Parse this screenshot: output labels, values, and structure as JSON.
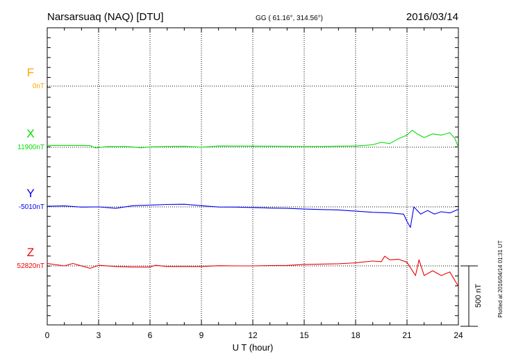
{
  "header": {
    "station": "Narsarsuaq (NAQ)  [DTU]",
    "coords": "GG ( 61.16°, 314.56°)",
    "date": "2016/03/14"
  },
  "side_note": "Plotted at 2016/04/14 01:31  UT",
  "chart_data": {
    "type": "line",
    "xlabel": "U T (hour)",
    "xlim": [
      0,
      24
    ],
    "xticks": [
      "0",
      "3",
      "6",
      "9",
      "12",
      "15",
      "18",
      "21",
      "24"
    ],
    "scale_label": "500 nT",
    "grid": true,
    "colors": {
      "F": "#ffa500",
      "X": "#00dd00",
      "Y": "#0000ee",
      "Z": "#ee0000"
    },
    "series": [
      {
        "name": "F",
        "baseline_label": "0nT",
        "points": []
      },
      {
        "name": "X",
        "baseline_label": "11900nT",
        "points": [
          [
            0,
            15
          ],
          [
            1.5,
            15
          ],
          [
            2.5,
            14
          ],
          [
            2.8,
            -5
          ],
          [
            3.2,
            0
          ],
          [
            3.6,
            5
          ],
          [
            4,
            4
          ],
          [
            4.5,
            5
          ],
          [
            5,
            2
          ],
          [
            5.5,
            -5
          ],
          [
            6,
            3
          ],
          [
            7,
            5
          ],
          [
            8,
            7
          ],
          [
            9,
            0
          ],
          [
            10,
            10
          ],
          [
            11,
            9
          ],
          [
            12,
            9
          ],
          [
            13,
            8
          ],
          [
            14,
            7
          ],
          [
            15,
            6
          ],
          [
            16,
            5
          ],
          [
            17,
            8
          ],
          [
            18,
            10
          ],
          [
            19,
            20
          ],
          [
            19.5,
            40
          ],
          [
            20,
            30
          ],
          [
            20.5,
            70
          ],
          [
            21,
            100
          ],
          [
            21.3,
            140
          ],
          [
            21.6,
            110
          ],
          [
            22,
            80
          ],
          [
            22.5,
            110
          ],
          [
            23,
            100
          ],
          [
            23.5,
            120
          ],
          [
            23.8,
            70
          ],
          [
            24,
            0
          ]
        ]
      },
      {
        "name": "Y",
        "baseline_label": "-5010nT",
        "points": [
          [
            0,
            5
          ],
          [
            1,
            8
          ],
          [
            2,
            -2
          ],
          [
            3,
            0
          ],
          [
            4,
            -12
          ],
          [
            5,
            10
          ],
          [
            6,
            15
          ],
          [
            7,
            20
          ],
          [
            8,
            22
          ],
          [
            9,
            10
          ],
          [
            10,
            -1
          ],
          [
            11,
            -2
          ],
          [
            12,
            -5
          ],
          [
            13,
            -10
          ],
          [
            14,
            -12
          ],
          [
            15,
            -18
          ],
          [
            16,
            -22
          ],
          [
            17,
            -25
          ],
          [
            18,
            -35
          ],
          [
            19,
            -45
          ],
          [
            20,
            -50
          ],
          [
            20.8,
            -60
          ],
          [
            21,
            -120
          ],
          [
            21.2,
            -170
          ],
          [
            21.4,
            0
          ],
          [
            21.8,
            -60
          ],
          [
            22.2,
            -30
          ],
          [
            22.6,
            -60
          ],
          [
            23,
            -40
          ],
          [
            23.5,
            -50
          ],
          [
            24,
            -20
          ]
        ]
      },
      {
        "name": "Z",
        "baseline_label": "52820nT",
        "points": [
          [
            0,
            20
          ],
          [
            1,
            0
          ],
          [
            1.5,
            20
          ],
          [
            2.5,
            -20
          ],
          [
            3,
            5
          ],
          [
            4,
            -5
          ],
          [
            5,
            -10
          ],
          [
            6,
            -10
          ],
          [
            6.3,
            5
          ],
          [
            7,
            -5
          ],
          [
            8,
            -5
          ],
          [
            9,
            -5
          ],
          [
            10,
            2
          ],
          [
            11,
            0
          ],
          [
            12,
            0
          ],
          [
            13,
            3
          ],
          [
            14,
            4
          ],
          [
            15,
            12
          ],
          [
            16,
            15
          ],
          [
            17,
            18
          ],
          [
            18,
            25
          ],
          [
            19,
            40
          ],
          [
            19.5,
            35
          ],
          [
            19.7,
            80
          ],
          [
            20,
            50
          ],
          [
            20.5,
            55
          ],
          [
            21,
            30
          ],
          [
            21.5,
            -80
          ],
          [
            21.7,
            50
          ],
          [
            22,
            -80
          ],
          [
            22.5,
            -40
          ],
          [
            23,
            -80
          ],
          [
            23.5,
            -50
          ],
          [
            24,
            -170
          ]
        ]
      }
    ]
  }
}
